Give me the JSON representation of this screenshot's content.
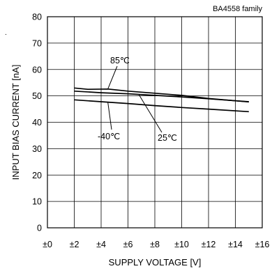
{
  "chart_data": {
    "type": "line",
    "family_label": "BA4558  family",
    "mark": ".",
    "xlabel": "SUPPLY VOLTAGE [V]",
    "ylabel": "INPUT BIAS CURRENT [nA]",
    "xlim": [
      0,
      16
    ],
    "ylim": [
      0,
      80
    ],
    "x_ticks": [
      0,
      2,
      4,
      6,
      8,
      10,
      12,
      14,
      16
    ],
    "x_tick_labels": [
      "±0",
      "±2",
      "±4",
      "±6",
      "±8",
      "±10",
      "±12",
      "±14",
      "±16"
    ],
    "y_ticks": [
      0,
      10,
      20,
      30,
      40,
      50,
      60,
      70,
      80
    ],
    "y_tick_labels": [
      "0",
      "10",
      "20",
      "30",
      "40",
      "50",
      "60",
      "70",
      "80"
    ],
    "grid": true,
    "line_color": "#000000",
    "series": [
      {
        "name": "85℃",
        "x": [
          2,
          3,
          4.5,
          6,
          8,
          10,
          12,
          15
        ],
        "y": [
          53,
          52.5,
          52.6,
          51.8,
          51,
          50.2,
          49,
          47.7
        ]
      },
      {
        "name": "25℃",
        "x": [
          2,
          4,
          6,
          8,
          10,
          12,
          15
        ],
        "y": [
          51.8,
          51.2,
          50.8,
          50.2,
          49.6,
          48.9,
          47.8
        ]
      },
      {
        "name": "-40℃",
        "x": [
          2,
          4,
          6,
          8,
          10,
          12,
          15
        ],
        "y": [
          48.5,
          47.8,
          47.1,
          46.3,
          45.6,
          45,
          44
        ]
      }
    ],
    "annotations": [
      {
        "text": "85℃",
        "series": 0
      },
      {
        "text": "25℃",
        "series": 1
      },
      {
        "text": "-40℃",
        "series": 2
      }
    ]
  }
}
